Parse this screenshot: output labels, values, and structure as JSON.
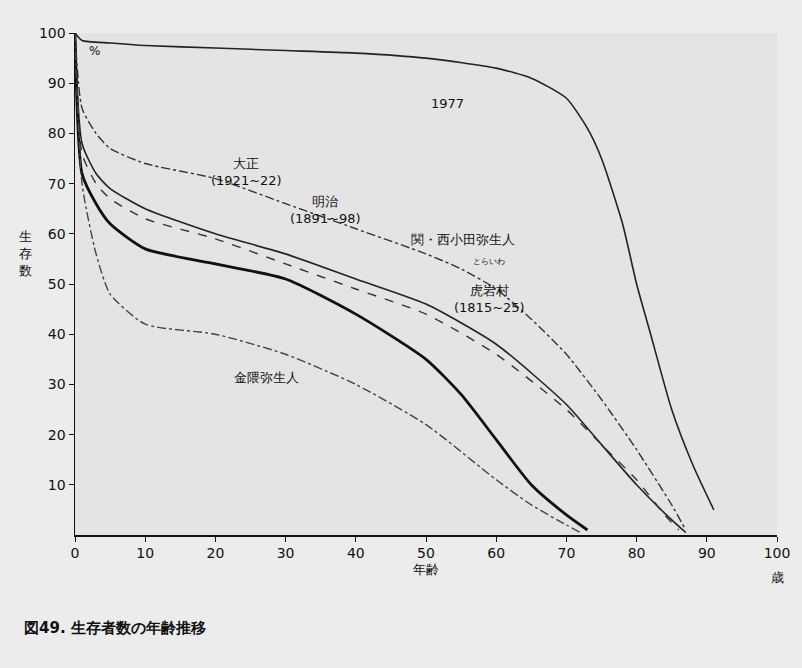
{
  "chart_data": {
    "type": "line",
    "title": "図49. 生存者数の年齢推移",
    "x_label": "年齢",
    "y_label": "生存数",
    "annotations": [
      "%",
      "歳",
      "とらいわ"
    ],
    "xlim": [
      0,
      100
    ],
    "xticks": [
      0,
      10,
      20,
      30,
      40,
      50,
      60,
      70,
      80,
      90,
      100
    ],
    "ylim": [
      0,
      100
    ],
    "yticks": [
      10,
      20,
      30,
      40,
      50,
      60,
      70,
      80,
      90,
      100
    ],
    "grid": false,
    "series": [
      {
        "name": "1977",
        "color": "#222222",
        "line_style": "solid",
        "x": [
          0,
          1,
          5,
          10,
          20,
          30,
          40,
          50,
          60,
          65,
          70,
          73,
          75,
          78,
          80,
          82,
          85,
          88,
          91
        ],
        "values": [
          100,
          98.5,
          98,
          97.5,
          97,
          96.5,
          96,
          95,
          93,
          91,
          87,
          81,
          75,
          62,
          50,
          40,
          25,
          14,
          5
        ]
      },
      {
        "name": "大正 (1921~22)",
        "color": "#333333",
        "line_style": "dashdot",
        "x": [
          0,
          1,
          3,
          5,
          10,
          20,
          30,
          40,
          50,
          55,
          60,
          65,
          70,
          75,
          80,
          85,
          87
        ],
        "values": [
          100,
          85,
          80,
          77,
          74,
          71,
          66,
          61,
          56,
          53,
          49,
          43,
          36,
          27,
          17,
          6,
          1
        ]
      },
      {
        "name": "明治 (1891~98)",
        "color": "#222222",
        "line_style": "solid",
        "x": [
          0,
          1,
          3,
          5,
          10,
          20,
          30,
          40,
          50,
          60,
          70,
          75,
          80,
          85,
          87
        ],
        "values": [
          100,
          78,
          72,
          69,
          65,
          60,
          56,
          51,
          46,
          38,
          26,
          18,
          10,
          3,
          0.5
        ]
      },
      {
        "name": "関・西小田弥生人",
        "color": "#111111",
        "line_style": "solid",
        "x": [
          0,
          1,
          3,
          5,
          10,
          20,
          30,
          40,
          50,
          55,
          60,
          65,
          70,
          73
        ],
        "values": [
          100,
          72,
          66,
          62,
          57,
          54,
          51,
          44,
          35,
          28,
          19,
          10,
          4,
          1
        ]
      },
      {
        "name": "虎岩村 (1815~25)",
        "color": "#333333",
        "line_style": "dash",
        "x": [
          0,
          1,
          3,
          5,
          10,
          20,
          30,
          40,
          50,
          60,
          70,
          75,
          80,
          84,
          86
        ],
        "values": [
          100,
          76,
          70,
          67,
          63,
          59,
          54,
          49,
          44,
          36,
          25,
          18,
          11,
          4,
          1
        ]
      },
      {
        "name": "金隈弥生人",
        "color": "#444444",
        "line_style": "dashdot",
        "x": [
          0,
          1,
          3,
          5,
          10,
          20,
          30,
          40,
          50,
          60,
          65,
          70,
          72
        ],
        "values": [
          100,
          70,
          56,
          48,
          42,
          40,
          36,
          30,
          22,
          11,
          6,
          2,
          0.5
        ]
      }
    ]
  }
}
